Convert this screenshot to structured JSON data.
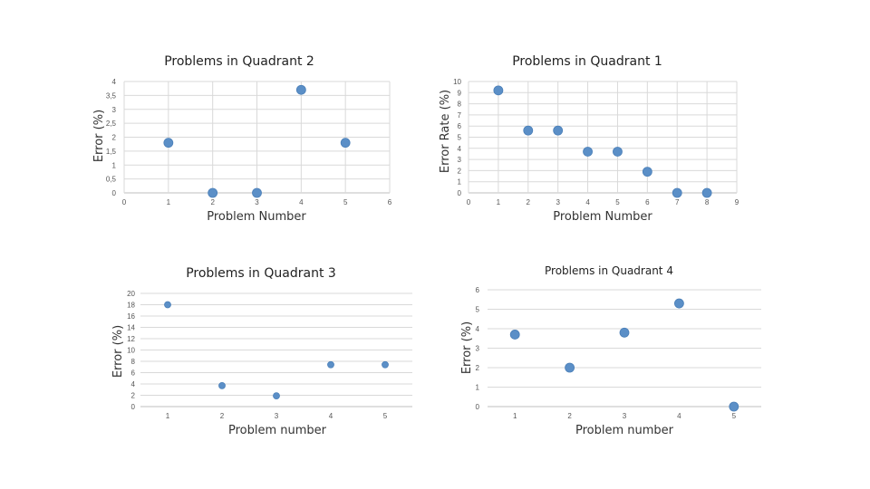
{
  "chart_data": [
    {
      "type": "scatter",
      "title": "Problems in Quadrant 2",
      "xlabel": "Problem Number",
      "ylabel": "Error (%)",
      "xlim": [
        0,
        6
      ],
      "ylim": [
        0,
        4
      ],
      "x_ticks": [
        "0",
        "1",
        "2",
        "3",
        "4",
        "5",
        "6"
      ],
      "y_ticks": [
        "0",
        "0,5",
        "1",
        "1,5",
        "2",
        "2,5",
        "3",
        "3,5",
        "4"
      ],
      "grid": "both",
      "x": [
        1,
        2,
        3,
        4,
        5
      ],
      "y": [
        1.8,
        0,
        0,
        3.7,
        1.8
      ],
      "color": "#5b8fc7"
    },
    {
      "type": "scatter",
      "title": "Problems in Quadrant 1",
      "xlabel": "Problem Number",
      "ylabel": "Error Rate (%)",
      "xlim": [
        0,
        9
      ],
      "ylim": [
        0,
        10
      ],
      "x_ticks": [
        "0",
        "1",
        "2",
        "3",
        "4",
        "5",
        "6",
        "7",
        "8",
        "9"
      ],
      "y_ticks": [
        "0",
        "1",
        "2",
        "3",
        "4",
        "5",
        "6",
        "7",
        "8",
        "9",
        "10"
      ],
      "grid": "both",
      "x": [
        1,
        2,
        3,
        4,
        5,
        6,
        7,
        8
      ],
      "y": [
        9.2,
        5.6,
        5.6,
        3.7,
        3.7,
        1.9,
        0,
        0
      ],
      "color": "#5b8fc7"
    },
    {
      "type": "scatter",
      "title": "Problems in Quadrant 3",
      "xlabel": "Problem number",
      "ylabel": "Error (%)",
      "xlim": [
        0.5,
        5.5
      ],
      "ylim": [
        0,
        20
      ],
      "x_ticks": [
        "1",
        "2",
        "3",
        "4",
        "5"
      ],
      "y_ticks": [
        "0",
        "2",
        "4",
        "6",
        "8",
        "10",
        "12",
        "14",
        "16",
        "18",
        "20"
      ],
      "grid": "horizontal",
      "x": [
        1,
        2,
        3,
        4,
        5
      ],
      "y": [
        18,
        3.7,
        1.9,
        7.4,
        7.4
      ],
      "color": "#5b8fc7"
    },
    {
      "type": "scatter",
      "title": "Problems in Quadrant 4",
      "xlabel": "Problem number",
      "ylabel": "Error (%)",
      "xlim": [
        0.5,
        5.5
      ],
      "ylim": [
        0,
        6
      ],
      "x_ticks": [
        "1",
        "2",
        "3",
        "4",
        "5"
      ],
      "y_ticks": [
        "0",
        "1",
        "2",
        "3",
        "4",
        "5",
        "6"
      ],
      "grid": "horizontal",
      "x": [
        1,
        2,
        3,
        4,
        5
      ],
      "y": [
        3.7,
        2,
        3.8,
        5.3,
        0
      ],
      "color": "#5b8fc7"
    }
  ]
}
